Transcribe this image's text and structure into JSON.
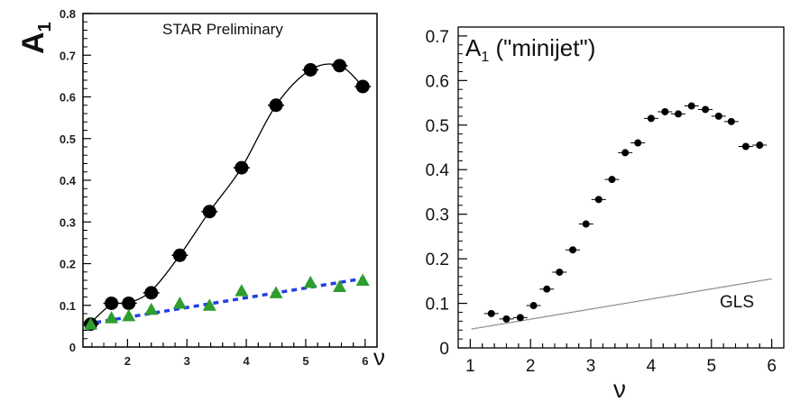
{
  "chart_data": [
    {
      "type": "scatter",
      "title": "STAR Preliminary",
      "xlabel": "ν",
      "ylabel": "A",
      "ylabel_sub": "1",
      "xlim": [
        1.25,
        6.2
      ],
      "ylim": [
        0,
        0.8
      ],
      "xticks": [
        "2",
        "3",
        "4",
        "5",
        "6"
      ],
      "xtick_values": [
        2,
        3,
        4,
        5,
        6
      ],
      "yticks": [
        "0",
        "0.1",
        "0.2",
        "0.3",
        "0.4",
        "0.5",
        "0.6",
        "0.7",
        "0.8"
      ],
      "ytick_values": [
        0,
        0.1,
        0.2,
        0.3,
        0.4,
        0.5,
        0.6,
        0.7,
        0.8
      ],
      "grid": false,
      "series": [
        {
          "marker": "circle",
          "color": "#000000",
          "x": [
            1.38,
            1.73,
            2.02,
            2.4,
            2.88,
            3.38,
            3.92,
            4.5,
            5.08,
            5.57,
            5.96
          ],
          "y": [
            0.055,
            0.105,
            0.105,
            0.13,
            0.22,
            0.325,
            0.43,
            0.58,
            0.665,
            0.675,
            0.625
          ]
        },
        {
          "marker": "triangle",
          "color": "#2e9e2e",
          "x": [
            1.38,
            1.73,
            2.02,
            2.4,
            2.88,
            3.38,
            3.92,
            4.5,
            5.08,
            5.57,
            5.96
          ],
          "y": [
            0.055,
            0.07,
            0.075,
            0.09,
            0.105,
            0.1,
            0.135,
            0.13,
            0.155,
            0.145,
            0.16
          ]
        }
      ],
      "fit_curve": {
        "color": "#000000",
        "x": [
          1.3,
          1.38,
          1.73,
          2.02,
          2.4,
          2.88,
          3.38,
          3.92,
          4.5,
          5.08,
          5.57,
          5.96
        ],
        "y": [
          0.045,
          0.058,
          0.102,
          0.106,
          0.135,
          0.22,
          0.325,
          0.43,
          0.58,
          0.665,
          0.675,
          0.625
        ]
      },
      "reference_line": {
        "color": "#2040e0",
        "style": "dashed",
        "x": [
          1.3,
          6.0
        ],
        "y": [
          0.055,
          0.165
        ]
      }
    },
    {
      "type": "scatter",
      "title": "A",
      "title_sub": "1",
      "title_suffix": " (\"minijet\")",
      "xlabel": "ν",
      "ylabel": "",
      "xlim": [
        0.8,
        6.2
      ],
      "ylim": [
        0,
        0.72
      ],
      "xticks": [
        "1",
        "2",
        "3",
        "4",
        "5",
        "6"
      ],
      "xtick_values": [
        1,
        2,
        3,
        4,
        5,
        6
      ],
      "yticks": [
        "0",
        "0.1",
        "0.2",
        "0.3",
        "0.4",
        "0.5",
        "0.6",
        "0.7"
      ],
      "ytick_values": [
        0,
        0.1,
        0.2,
        0.3,
        0.4,
        0.5,
        0.6,
        0.7
      ],
      "grid": false,
      "annotation": "GLS",
      "series": [
        {
          "marker": "circle",
          "color": "#000000",
          "x": [
            1.35,
            1.6,
            1.83,
            2.05,
            2.27,
            2.48,
            2.7,
            2.92,
            3.13,
            3.35,
            3.57,
            3.78,
            4.0,
            4.23,
            4.45,
            4.67,
            4.9,
            5.12,
            5.33,
            5.57,
            5.8
          ],
          "y": [
            0.077,
            0.065,
            0.068,
            0.095,
            0.132,
            0.17,
            0.22,
            0.278,
            0.333,
            0.378,
            0.438,
            0.46,
            0.515,
            0.53,
            0.525,
            0.543,
            0.535,
            0.52,
            0.508,
            0.452,
            0.455
          ]
        },
        {
          "name": "GLS",
          "marker": "dash",
          "color": "#888888",
          "x_start": 1.05,
          "x_end": 6.0,
          "x_step": 0.06,
          "y_start": 0.043,
          "y_end": 0.155
        }
      ]
    }
  ]
}
